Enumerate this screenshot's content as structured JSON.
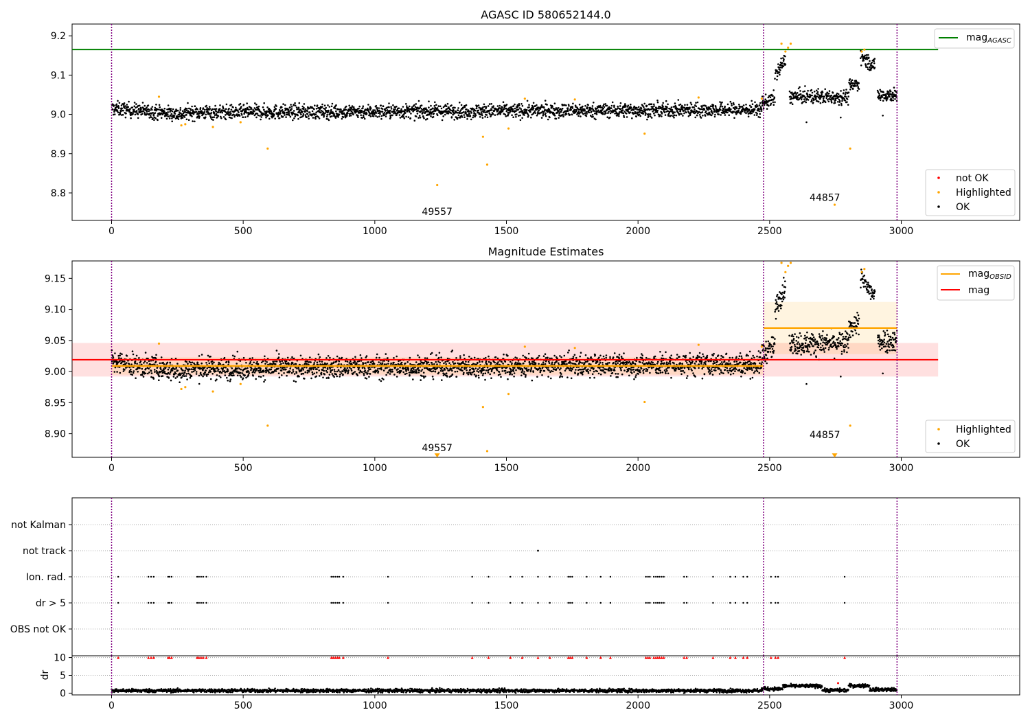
{
  "chart_data": [
    {
      "type": "scatter",
      "title": "AGASC ID 580652144.0",
      "xlim": [
        -150,
        3450
      ],
      "ylim": [
        8.73,
        9.23
      ],
      "xticks": [
        0,
        500,
        1000,
        1500,
        2000,
        2500,
        3000
      ],
      "yticks": [
        8.8,
        8.9,
        9.0,
        9.1,
        9.2
      ],
      "ytick_labels": [
        "8.8",
        "8.9",
        "9.0",
        "9.1",
        "9.2"
      ],
      "hline": {
        "y": 9.165,
        "x_end": 3140,
        "color": "#008000"
      },
      "vlines": [
        0,
        2477,
        2984
      ],
      "ok_segments": [
        {
          "x0": 0,
          "x1": 280,
          "y0": 9.015,
          "y1": 9.0
        },
        {
          "x0": 280,
          "x1": 2470,
          "y0": 9.005,
          "y1": 9.012
        },
        {
          "x0": 2470,
          "x1": 2520,
          "y0": 9.03,
          "y1": 9.04
        },
        {
          "x0": 2520,
          "x1": 2560,
          "y0": 9.1,
          "y1": 9.14
        },
        {
          "x0": 2575,
          "x1": 2800,
          "y0": 9.045,
          "y1": 9.045
        },
        {
          "x0": 2800,
          "x1": 2840,
          "y0": 9.07,
          "y1": 9.08
        },
        {
          "x0": 2845,
          "x1": 2900,
          "y0": 9.15,
          "y1": 9.12
        },
        {
          "x0": 2910,
          "x1": 2984,
          "y0": 9.05,
          "y1": 9.05
        }
      ],
      "highlighted_points": [
        [
          180,
          9.045
        ],
        [
          265,
          8.972
        ],
        [
          280,
          8.975
        ],
        [
          385,
          8.968
        ],
        [
          490,
          8.98
        ],
        [
          593,
          8.913
        ],
        [
          1237,
          8.82
        ],
        [
          1411,
          8.943
        ],
        [
          1427,
          8.872
        ],
        [
          1508,
          8.964
        ],
        [
          1570,
          9.04
        ],
        [
          1760,
          9.038
        ],
        [
          2025,
          8.951
        ],
        [
          2230,
          9.043
        ],
        [
          2470,
          9.04
        ],
        [
          2545,
          9.18
        ],
        [
          2560,
          9.16
        ],
        [
          2570,
          9.17
        ],
        [
          2580,
          9.18
        ],
        [
          2747,
          8.77
        ],
        [
          2806,
          8.913
        ],
        [
          2850,
          9.16
        ],
        [
          2860,
          9.165
        ]
      ],
      "outlier_points": [
        [
          2640,
          8.98
        ],
        [
          2770,
          8.992
        ],
        [
          2930,
          8.997
        ]
      ],
      "annotations": [
        {
          "x": 1237,
          "y": 8.744,
          "text": "49557"
        },
        {
          "x": 2710,
          "y": 8.78,
          "text": "44857"
        }
      ],
      "legend_top": {
        "placement": "top-right",
        "line_label": "mag",
        "line_sub": "AGASC"
      },
      "legend_bottom": {
        "placement": "bottom-right",
        "items": [
          {
            "label": "not OK",
            "color": "#ff0000"
          },
          {
            "label": "Highlighted",
            "color": "#ffa500"
          },
          {
            "label": "OK",
            "color": "#000000"
          }
        ]
      }
    },
    {
      "type": "scatter",
      "title": "Magnitude Estimates",
      "xlim": [
        -150,
        3450
      ],
      "ylim": [
        8.862,
        9.178
      ],
      "xticks": [
        0,
        500,
        1000,
        1500,
        2000,
        2500,
        3000
      ],
      "yticks": [
        8.9,
        8.95,
        9.0,
        9.05,
        9.1,
        9.15
      ],
      "ytick_labels": [
        "8.90",
        "8.95",
        "9.00",
        "9.05",
        "9.10",
        "9.15"
      ],
      "mag_line": {
        "y": 9.019,
        "x_end": 3140,
        "color": "#ff0000",
        "band": [
          8.992,
          9.046
        ]
      },
      "obsid_lines": [
        {
          "x0": 0,
          "x1": 2477,
          "y": 9.009,
          "band": [
            8.995,
            9.023
          ]
        },
        {
          "x0": 2477,
          "x1": 2984,
          "y": 9.07,
          "band": [
            9.028,
            9.112
          ]
        }
      ],
      "vlines": [
        0,
        2477,
        2984
      ],
      "ok_segments": [
        {
          "x0": 0,
          "x1": 280,
          "y0": 9.015,
          "y1": 9.0
        },
        {
          "x0": 280,
          "x1": 2470,
          "y0": 9.005,
          "y1": 9.012
        },
        {
          "x0": 2470,
          "x1": 2520,
          "y0": 9.03,
          "y1": 9.04
        },
        {
          "x0": 2520,
          "x1": 2560,
          "y0": 9.1,
          "y1": 9.14
        },
        {
          "x0": 2575,
          "x1": 2800,
          "y0": 9.045,
          "y1": 9.045
        },
        {
          "x0": 2800,
          "x1": 2840,
          "y0": 9.07,
          "y1": 9.08
        },
        {
          "x0": 2845,
          "x1": 2900,
          "y0": 9.15,
          "y1": 9.12
        },
        {
          "x0": 2910,
          "x1": 2984,
          "y0": 9.05,
          "y1": 9.05
        }
      ],
      "highlighted_points": [
        [
          180,
          9.045
        ],
        [
          265,
          8.972
        ],
        [
          280,
          8.975
        ],
        [
          385,
          8.968
        ],
        [
          490,
          8.98
        ],
        [
          593,
          8.913
        ],
        [
          1411,
          8.943
        ],
        [
          1427,
          8.872
        ],
        [
          1508,
          8.964
        ],
        [
          1570,
          9.04
        ],
        [
          1760,
          9.038
        ],
        [
          2025,
          8.951
        ],
        [
          2230,
          9.043
        ],
        [
          2470,
          9.04
        ],
        [
          2545,
          9.175
        ],
        [
          2560,
          9.16
        ],
        [
          2570,
          9.17
        ],
        [
          2580,
          9.175
        ],
        [
          2806,
          8.913
        ],
        [
          2850,
          9.16
        ],
        [
          2860,
          9.165
        ]
      ],
      "outlier_points": [
        [
          2640,
          8.98
        ],
        [
          2770,
          8.992
        ],
        [
          2930,
          8.997
        ]
      ],
      "down_markers": [
        [
          1237,
          8.865
        ],
        [
          2747,
          8.865
        ]
      ],
      "annotations": [
        {
          "x": 1237,
          "y": 8.872,
          "text": "49557"
        },
        {
          "x": 2710,
          "y": 8.893,
          "text": "44857"
        }
      ],
      "legend_top": {
        "placement": "top-right",
        "items": [
          {
            "label": "mag",
            "sub": "OBSID",
            "color": "#ffa500"
          },
          {
            "label": "mag",
            "sub": "",
            "color": "#ff0000"
          }
        ]
      },
      "legend_bottom": {
        "placement": "bottom-right",
        "items": [
          {
            "label": "Highlighted",
            "color": "#ffa500"
          },
          {
            "label": "OK",
            "color": "#000000"
          }
        ]
      }
    },
    {
      "type": "scatter",
      "title": "",
      "xlim": [
        -150,
        3450
      ],
      "categories": [
        "not Kalman",
        "not track",
        "Ion. rad.",
        "dr > 5",
        "OBS not OK"
      ],
      "vlines": [
        0,
        2477,
        2984
      ],
      "not_track_points": [
        1620
      ],
      "ion_rad_points": [
        25,
        140,
        150,
        160,
        215,
        220,
        228,
        325,
        332,
        340,
        348,
        360,
        835,
        842,
        850,
        858,
        865,
        880,
        1050,
        1370,
        1432,
        1515,
        1560,
        1620,
        1665,
        1735,
        1742,
        1750,
        1805,
        1858,
        1895,
        2030,
        2038,
        2045,
        2060,
        2068,
        2075,
        2082,
        2090,
        2098,
        2175,
        2185,
        2285,
        2350,
        2370,
        2400,
        2415,
        2505,
        2522,
        2532,
        2785
      ]
    },
    {
      "type": "scatter",
      "title": "",
      "xlim": [
        -150,
        3450
      ],
      "ylim": [
        -0.5,
        10.5
      ],
      "yticks": [
        0,
        5,
        10
      ],
      "ytick_labels": [
        "0",
        "5",
        "10"
      ],
      "xticks": [
        0,
        500,
        1000,
        1500,
        2000,
        2500,
        3000
      ],
      "ylabel": "dr",
      "vlines": [
        0,
        2477,
        2984
      ],
      "dr_segments": [
        {
          "x0": 0,
          "x1": 2470,
          "y": 0.7
        },
        {
          "x0": 2470,
          "x1": 2550,
          "y": 1.2
        },
        {
          "x0": 2550,
          "x1": 2700,
          "y": 2.0
        },
        {
          "x0": 2700,
          "x1": 2800,
          "y": 0.8
        },
        {
          "x0": 2800,
          "x1": 2880,
          "y": 2.1
        },
        {
          "x0": 2880,
          "x1": 2984,
          "y": 1.0
        }
      ],
      "red_markers_at_10": [
        25,
        140,
        150,
        160,
        215,
        220,
        228,
        325,
        332,
        340,
        348,
        360,
        835,
        842,
        850,
        858,
        865,
        880,
        1050,
        1370,
        1432,
        1515,
        1560,
        1620,
        1665,
        1735,
        1742,
        1750,
        1805,
        1858,
        1895,
        2030,
        2038,
        2045,
        2060,
        2068,
        2075,
        2082,
        2090,
        2098,
        2175,
        2185,
        2285,
        2350,
        2370,
        2400,
        2415,
        2505,
        2522,
        2532,
        2785
      ],
      "red_outliers": [
        [
          2760,
          2.8
        ]
      ]
    }
  ]
}
